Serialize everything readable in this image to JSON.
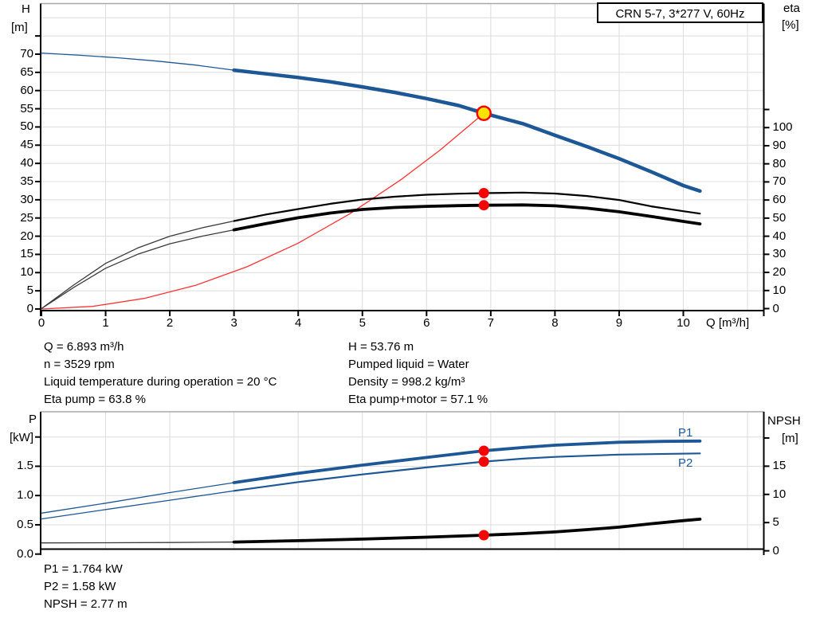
{
  "title_box": "CRN 5-7, 3*277 V, 60Hz",
  "labels": {
    "h_axis": "H",
    "h_unit": "[m]",
    "eta_axis": "eta",
    "eta_unit": "[%]",
    "q_axis": "Q [m³/h]",
    "p_axis": "P",
    "p_unit": "[kW]",
    "npsh_axis": "NPSH",
    "npsh_unit": "[m]",
    "p1": "P1",
    "p2": "P2"
  },
  "annotations": {
    "left": [
      "Q = 6.893 m³/h",
      "n = 3529 rpm",
      "Liquid temperature during operation = 20 °C",
      "Eta pump = 63.8 %"
    ],
    "right": [
      "H = 53.76 m",
      "Pumped liquid = Water",
      "Density = 998.2 kg/m³",
      "Eta pump+motor = 57.1 %"
    ],
    "bottom": [
      "P1 = 1.764 kW",
      "P2 = 1.58 kW",
      "NPSH = 2.77 m"
    ]
  },
  "colors": {
    "blue": "#1d5795",
    "thin_dark": "#3a3a3a",
    "black": "#000000",
    "red_curve": "#ff3333",
    "dot_red": "#f90000",
    "duty_yellow": "#ffe400",
    "grid": "#dcdcdc",
    "frame_gray": "#a8a8a8"
  },
  "chart_data": [
    {
      "type": "line",
      "name": "QH and efficiency curves",
      "xlabel": "Q [m³/h]",
      "x_range": [
        0,
        11.26
      ],
      "ylim_left_H_m": [
        0,
        75
      ],
      "ylim_right_eta_pct": [
        0,
        110
      ],
      "grid": true,
      "grid_x": [
        1,
        2,
        3,
        4,
        5,
        6,
        7,
        8,
        9,
        10,
        11
      ],
      "grid_y": {
        "scale": "H",
        "values": [
          5,
          10,
          15,
          20,
          25,
          30,
          35,
          40,
          45,
          50,
          55,
          60,
          65,
          70,
          75,
          80
        ]
      },
      "xticks": [
        [
          0,
          "0"
        ],
        [
          1,
          "1"
        ],
        [
          2,
          "2"
        ],
        [
          3,
          "3"
        ],
        [
          4,
          "4"
        ],
        [
          5,
          "5"
        ],
        [
          6,
          "6"
        ],
        [
          7,
          "7"
        ],
        [
          8,
          "8"
        ],
        [
          9,
          "9"
        ],
        [
          10,
          "10"
        ]
      ],
      "axes": {
        "left": {
          "scale": "H",
          "ticks": [
            [
              0,
              "0"
            ],
            [
              5,
              "5"
            ],
            [
              10,
              "10"
            ],
            [
              15,
              "15"
            ],
            [
              20,
              "20"
            ],
            [
              25,
              "25"
            ],
            [
              30,
              "30"
            ],
            [
              35,
              "35"
            ],
            [
              40,
              "40"
            ],
            [
              45,
              "45"
            ],
            [
              50,
              "50"
            ],
            [
              55,
              "55"
            ],
            [
              60,
              "60"
            ],
            [
              65,
              "65"
            ],
            [
              70,
              "70"
            ],
            [
              75,
              null
            ]
          ]
        },
        "right": {
          "scale": "eta",
          "ticks": [
            [
              0,
              "0"
            ],
            [
              10,
              "10"
            ],
            [
              20,
              "20"
            ],
            [
              30,
              "30"
            ],
            [
              40,
              "40"
            ],
            [
              50,
              "50"
            ],
            [
              60,
              "60"
            ],
            [
              70,
              "70"
            ],
            [
              80,
              "80"
            ],
            [
              90,
              "90"
            ],
            [
              100,
              "100"
            ],
            [
              110,
              null
            ]
          ]
        }
      },
      "operating_point": {
        "Q": 6.893,
        "H": 53.76,
        "eta_pump": 63.8,
        "eta_pump_motor": 57.1
      },
      "series": [
        {
          "name": "pump-curve-extrapolated",
          "scale": "H",
          "color": "blue",
          "width": 1.3,
          "points": [
            [
              0,
              70.3
            ],
            [
              0.6,
              69.7
            ],
            [
              1.2,
              69.0
            ],
            [
              1.8,
              68.1
            ],
            [
              2.4,
              67.0
            ],
            [
              3,
              65.6
            ]
          ]
        },
        {
          "name": "pump-curve",
          "scale": "H",
          "color": "blue",
          "width": 4.5,
          "points": [
            [
              3,
              65.6
            ],
            [
              3.5,
              64.6
            ],
            [
              4,
              63.6
            ],
            [
              4.5,
              62.4
            ],
            [
              5,
              61.0
            ],
            [
              5.5,
              59.5
            ],
            [
              6,
              57.8
            ],
            [
              6.5,
              55.9
            ],
            [
              6.893,
              53.76
            ],
            [
              7.5,
              50.9
            ],
            [
              8,
              47.7
            ],
            [
              8.5,
              44.6
            ],
            [
              9,
              41.3
            ],
            [
              9.5,
              37.7
            ],
            [
              10,
              33.9
            ],
            [
              10.26,
              32.4
            ]
          ]
        },
        {
          "name": "system-curve",
          "scale": "H",
          "color": "red_curve",
          "width": 1.3,
          "points": [
            [
              0,
              0
            ],
            [
              0.8,
              0.72
            ],
            [
              1.6,
              2.9
            ],
            [
              2.4,
              6.5
            ],
            [
              3.2,
              11.6
            ],
            [
              4,
              18.1
            ],
            [
              4.8,
              26.1
            ],
            [
              5.6,
              35.5
            ],
            [
              6.2,
              43.5
            ],
            [
              6.893,
              53.76
            ]
          ]
        },
        {
          "name": "eta-pump-extrapolated",
          "scale": "eta",
          "color": "thin_dark",
          "width": 1.3,
          "points": [
            [
              0,
              0
            ],
            [
              0.5,
              13
            ],
            [
              1,
              25
            ],
            [
              1.5,
              33.5
            ],
            [
              2,
              40
            ],
            [
              2.5,
              44.6
            ],
            [
              3,
              48.4
            ]
          ]
        },
        {
          "name": "eta-pump-curve",
          "scale": "eta",
          "color": "black",
          "width": 2.2,
          "points": [
            [
              3,
              48.4
            ],
            [
              3.5,
              52
            ],
            [
              4,
              55
            ],
            [
              4.5,
              57.9
            ],
            [
              5,
              60.3
            ],
            [
              5.5,
              61.8
            ],
            [
              6,
              62.9
            ],
            [
              6.5,
              63.5
            ],
            [
              6.893,
              63.8
            ],
            [
              7.5,
              64.1
            ],
            [
              8,
              63.6
            ],
            [
              8.5,
              62.2
            ],
            [
              9,
              60.0
            ],
            [
              9.5,
              56.5
            ],
            [
              10,
              53.8
            ],
            [
              10.26,
              52.5
            ]
          ]
        },
        {
          "name": "eta-pump-motor-extrapolated",
          "scale": "eta",
          "color": "thin_dark",
          "width": 1.3,
          "points": [
            [
              0,
              0
            ],
            [
              0.5,
              11.6
            ],
            [
              1,
              22.3
            ],
            [
              1.5,
              30
            ],
            [
              2,
              35.8
            ],
            [
              2.5,
              40
            ],
            [
              3,
              43.5
            ]
          ]
        },
        {
          "name": "eta-pump-motor-curve",
          "scale": "eta",
          "color": "black",
          "width": 3.8,
          "points": [
            [
              3,
              43.5
            ],
            [
              3.5,
              47
            ],
            [
              4,
              50.2
            ],
            [
              4.5,
              52.8
            ],
            [
              5,
              54.8
            ],
            [
              5.5,
              55.9
            ],
            [
              6,
              56.5
            ],
            [
              6.5,
              56.9
            ],
            [
              6.893,
              57.1
            ],
            [
              7.5,
              57.3
            ],
            [
              8,
              56.8
            ],
            [
              8.5,
              55.5
            ],
            [
              9,
              53.5
            ],
            [
              9.5,
              50.9
            ],
            [
              10,
              48.2
            ],
            [
              10.26,
              46.8
            ]
          ]
        }
      ],
      "markers": [
        {
          "name": "eta-pump-point",
          "q": 6.893,
          "v": 63.8,
          "scale": "eta",
          "fill": "dot_red",
          "r": 6.5
        },
        {
          "name": "eta-pump-motor-point",
          "q": 6.893,
          "v": 57.1,
          "scale": "eta",
          "fill": "dot_red",
          "r": 6.5
        },
        {
          "name": "duty-point",
          "q": 6.893,
          "v": 53.76,
          "scale": "H",
          "fill": "duty_yellow",
          "ring": "dot_red",
          "r": 8.5
        }
      ]
    },
    {
      "type": "line",
      "name": "Power and NPSH curves",
      "x_range": [
        0,
        11.26
      ],
      "ylim_left_P_kW": [
        0,
        2.0
      ],
      "ylim_right_NPSH_m": [
        0,
        20
      ],
      "grid": true,
      "grid_x": [
        1,
        2,
        3,
        4,
        5,
        6,
        7,
        8,
        9,
        10,
        11
      ],
      "grid_y": {
        "scale": "P",
        "values": [
          0.5,
          1.0,
          1.5,
          2.0
        ]
      },
      "xticks": [],
      "axes": {
        "left": {
          "scale": "P",
          "ticks": [
            [
              0,
              "0.0"
            ],
            [
              0.5,
              "0.5"
            ],
            [
              1,
              "1.0"
            ],
            [
              1.5,
              "1.5"
            ],
            [
              2,
              null
            ]
          ]
        },
        "right": {
          "scale": "NPSH",
          "ticks": [
            [
              0,
              "0"
            ],
            [
              5,
              "5"
            ],
            [
              10,
              "10"
            ],
            [
              15,
              "15"
            ],
            [
              20,
              null
            ]
          ]
        }
      },
      "operating_point": {
        "Q": 6.893,
        "P1_kW": 1.764,
        "P2_kW": 1.58,
        "NPSH_m": 2.77
      },
      "series": [
        {
          "name": "p1-extrapolated",
          "scale": "P",
          "color": "blue",
          "width": 1.3,
          "points": [
            [
              0,
              0.7
            ],
            [
              1,
              0.87
            ],
            [
              2,
              1.05
            ],
            [
              3,
              1.22
            ]
          ]
        },
        {
          "name": "p1-curve",
          "scale": "P",
          "color": "blue",
          "width": 3.8,
          "points": [
            [
              3,
              1.22
            ],
            [
              4,
              1.38
            ],
            [
              5,
              1.52
            ],
            [
              6,
              1.65
            ],
            [
              6.893,
              1.764
            ],
            [
              7.5,
              1.82
            ],
            [
              8,
              1.86
            ],
            [
              9,
              1.91
            ],
            [
              9.7,
              1.925
            ],
            [
              10.26,
              1.93
            ]
          ]
        },
        {
          "name": "p2-extrapolated",
          "scale": "P",
          "color": "blue",
          "width": 1.3,
          "points": [
            [
              0,
              0.6
            ],
            [
              1,
              0.76
            ],
            [
              2,
              0.92
            ],
            [
              3,
              1.08
            ]
          ]
        },
        {
          "name": "p2-curve",
          "scale": "P",
          "color": "blue",
          "width": 2.2,
          "points": [
            [
              3,
              1.08
            ],
            [
              4,
              1.23
            ],
            [
              5,
              1.36
            ],
            [
              6,
              1.48
            ],
            [
              6.893,
              1.58
            ],
            [
              7.5,
              1.63
            ],
            [
              8,
              1.66
            ],
            [
              9,
              1.7
            ],
            [
              10.26,
              1.72
            ]
          ]
        },
        {
          "name": "npsh-extrapolated",
          "scale": "NPSH",
          "color": "thin_dark",
          "width": 1.3,
          "points": [
            [
              0,
              1.4
            ],
            [
              1,
              1.42
            ],
            [
              2,
              1.47
            ],
            [
              3,
              1.56
            ]
          ]
        },
        {
          "name": "npsh-curve",
          "scale": "NPSH",
          "color": "black",
          "width": 3.8,
          "points": [
            [
              3,
              1.56
            ],
            [
              4,
              1.8
            ],
            [
              5,
              2.08
            ],
            [
              6,
              2.42
            ],
            [
              6.893,
              2.77
            ],
            [
              7.5,
              3.05
            ],
            [
              8,
              3.35
            ],
            [
              8.5,
              3.75
            ],
            [
              9,
              4.2
            ],
            [
              9.5,
              4.8
            ],
            [
              10,
              5.35
            ],
            [
              10.26,
              5.6
            ]
          ]
        }
      ],
      "markers": [
        {
          "name": "p1-point",
          "q": 6.893,
          "v": 1.764,
          "scale": "P",
          "fill": "dot_red",
          "r": 6.5
        },
        {
          "name": "p2-point",
          "q": 6.893,
          "v": 1.58,
          "scale": "P",
          "fill": "dot_red",
          "r": 6.5
        },
        {
          "name": "npsh-point",
          "q": 6.893,
          "v": 2.77,
          "scale": "NPSH",
          "fill": "dot_red",
          "r": 6.5
        }
      ]
    }
  ]
}
